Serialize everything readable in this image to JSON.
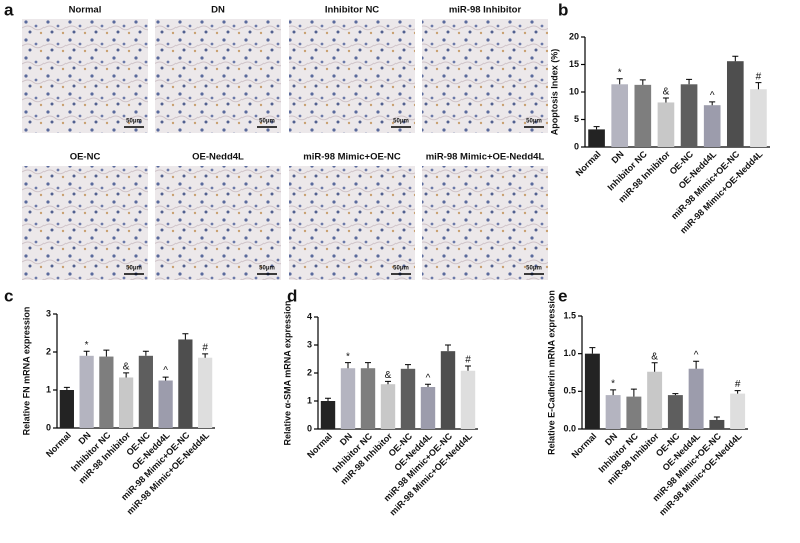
{
  "image_panel": {
    "label": "a",
    "images": [
      {
        "title": "Normal",
        "scale": "50μm"
      },
      {
        "title": "DN",
        "scale": "50μm"
      },
      {
        "title": "Inhibitor NC",
        "scale": "50μm"
      },
      {
        "title": "miR-98 Inhibitor",
        "scale": "50μm"
      },
      {
        "title": "OE-NC",
        "scale": "50μm"
      },
      {
        "title": "OE-Nedd4L",
        "scale": "50μm"
      },
      {
        "title": "miR-98 Mimic+OE-NC",
        "scale": "50μm"
      },
      {
        "title": "miR-98 Mimic+OE-Nedd4L",
        "scale": "50μm"
      }
    ]
  },
  "chart_data": [
    {
      "type": "bar",
      "panel_label": "b",
      "y_label": "Apoptosis Index (%)",
      "categories": [
        "Normal",
        "DN",
        "Inhibitor NC",
        "miR-98 Inhibitor",
        "OE-NC",
        "OE-Nedd4L",
        "miR-98 Mimic+OE-NC",
        "miR-98 Mimic+OE-Nedd4L"
      ],
      "values": [
        3.2,
        11.4,
        11.3,
        8.1,
        11.4,
        7.6,
        15.6,
        10.5
      ],
      "errors": [
        0.5,
        1.0,
        0.9,
        0.8,
        0.9,
        0.6,
        0.9,
        1.2
      ],
      "markers": [
        null,
        "*",
        null,
        "&",
        null,
        "^",
        null,
        "#"
      ],
      "colors": [
        "#232323",
        "#b4b4c0",
        "#7e7e7e",
        "#c8c8c8",
        "#5e5e5e",
        "#9c9cac",
        "#4e4e4e",
        "#dedede"
      ],
      "ylim": [
        0,
        20
      ],
      "yticks": [
        0,
        5,
        10,
        15,
        20
      ]
    },
    {
      "type": "bar",
      "panel_label": "c",
      "y_label": "Relative FN mRNA expression",
      "categories": [
        "Normal",
        "DN",
        "Inhibitor NC",
        "miR-98 Inhibitor",
        "OE-NC",
        "OE-Nedd4L",
        "miR-98 Mimic+OE-NC",
        "miR-98 Mimic+OE-Nedd4L"
      ],
      "values": [
        1.0,
        1.9,
        1.88,
        1.33,
        1.9,
        1.25,
        2.33,
        1.85
      ],
      "errors": [
        0.07,
        0.12,
        0.17,
        0.12,
        0.12,
        0.09,
        0.15,
        0.1
      ],
      "markers": [
        null,
        "*",
        null,
        "&",
        null,
        "^",
        null,
        "#"
      ],
      "colors": [
        "#232323",
        "#b4b4c0",
        "#7e7e7e",
        "#c8c8c8",
        "#5e5e5e",
        "#9c9cac",
        "#4e4e4e",
        "#dedede"
      ],
      "ylim": [
        0,
        3
      ],
      "yticks": [
        0,
        1,
        2,
        3
      ]
    },
    {
      "type": "bar",
      "panel_label": "d",
      "y_label": "Relative α-SMA mRNA expression",
      "categories": [
        "Normal",
        "DN",
        "Inhibitor NC",
        "miR-98 Inhibitor",
        "OE-NC",
        "OE-Nedd4L",
        "miR-98 Mimic+OE-NC",
        "miR-98 Mimic+OE-Nedd4L"
      ],
      "values": [
        1.0,
        2.17,
        2.17,
        1.6,
        2.15,
        1.5,
        2.78,
        2.08
      ],
      "errors": [
        0.1,
        0.2,
        0.2,
        0.1,
        0.15,
        0.1,
        0.22,
        0.17
      ],
      "markers": [
        null,
        "*",
        null,
        "&",
        null,
        "^",
        null,
        "#"
      ],
      "colors": [
        "#232323",
        "#b4b4c0",
        "#7e7e7e",
        "#c8c8c8",
        "#5e5e5e",
        "#9c9cac",
        "#4e4e4e",
        "#dedede"
      ],
      "ylim": [
        0,
        4
      ],
      "yticks": [
        0,
        1,
        2,
        3,
        4
      ]
    },
    {
      "type": "bar",
      "panel_label": "e",
      "y_label": "Relative E-Cadherin mRNA expression",
      "categories": [
        "Normal",
        "DN",
        "Inhibitor NC",
        "miR-98 Inhibitor",
        "OE-NC",
        "OE-Nedd4L",
        "miR-98 Mimic+OE-NC",
        "miR-98 Mimic+OE-Nedd4L"
      ],
      "values": [
        1.0,
        0.45,
        0.43,
        0.76,
        0.45,
        0.8,
        0.12,
        0.47
      ],
      "errors": [
        0.08,
        0.07,
        0.1,
        0.12,
        0.02,
        0.1,
        0.04,
        0.04
      ],
      "markers": [
        null,
        "*",
        null,
        "&",
        null,
        "^",
        null,
        "#"
      ],
      "colors": [
        "#232323",
        "#b4b4c0",
        "#7e7e7e",
        "#c8c8c8",
        "#5e5e5e",
        "#9c9cac",
        "#4e4e4e",
        "#dedede"
      ],
      "ylim": [
        0,
        1.5
      ],
      "yticks": [
        {
          "value": 0,
          "label": "0.0"
        },
        {
          "value": 0.5,
          "label": "0.5"
        },
        {
          "value": 1,
          "label": "1.0"
        },
        {
          "value": 1.5,
          "label": "1.5"
        }
      ]
    }
  ]
}
